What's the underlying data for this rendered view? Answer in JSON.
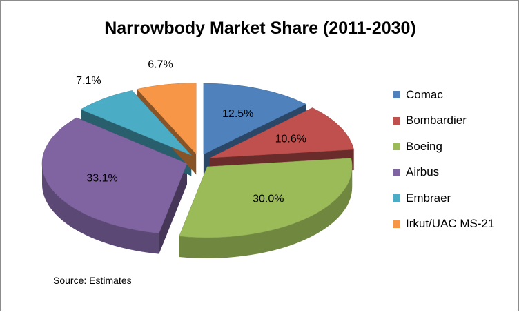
{
  "chart_data": {
    "type": "pie",
    "style": "3d-exploded",
    "title": "Narrowbody Market Share (2011-2030)",
    "source": "Source: Estimates",
    "legend_position": "right",
    "slices": [
      {
        "name": "Comac",
        "value": 12.5,
        "label": "12.5%",
        "color": "#4f81bd"
      },
      {
        "name": "Bombardier",
        "value": 10.6,
        "label": "10.6%",
        "color": "#c0504d"
      },
      {
        "name": "Boeing",
        "value": 30.0,
        "label": "30.0%",
        "color": "#9bbb59"
      },
      {
        "name": "Airbus",
        "value": 33.1,
        "label": "33.1%",
        "color": "#8064a2"
      },
      {
        "name": "Embraer",
        "value": 7.1,
        "label": "7.1%",
        "color": "#4bacc6"
      },
      {
        "name": "Irkut/UAC MS-21",
        "value": 6.7,
        "label": "6.7%",
        "color": "#f79646"
      }
    ]
  }
}
